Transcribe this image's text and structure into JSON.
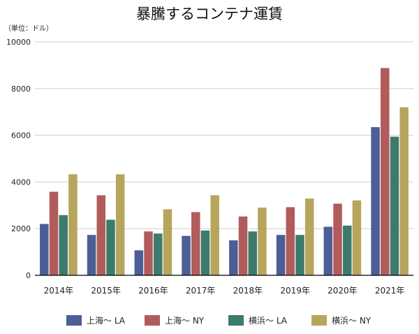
{
  "chart_data": {
    "type": "bar",
    "title": "暴騰するコンテナ運賃",
    "unit_label": "（単位：ドル）",
    "xlabel": "",
    "ylabel": "",
    "ylim": [
      0,
      10000
    ],
    "yticks": [
      0,
      2000,
      4000,
      6000,
      8000,
      10000
    ],
    "grid": true,
    "legend_position": "bottom",
    "categories": [
      "2014年",
      "2015年",
      "2016年",
      "2017年",
      "2018年",
      "2019年",
      "2020年",
      "2021年"
    ],
    "series": [
      {
        "name": "上海～ LA",
        "color": "#4b5f96",
        "values": [
          2200,
          1730,
          1070,
          1690,
          1500,
          1730,
          2080,
          6350
        ]
      },
      {
        "name": "上海～ NY",
        "color": "#b25b5b",
        "values": [
          3580,
          3430,
          1880,
          2710,
          2520,
          2920,
          3070,
          8880
        ]
      },
      {
        "name": "横浜～ LA",
        "color": "#3c7b6c",
        "values": [
          2580,
          2380,
          1790,
          1920,
          1880,
          1730,
          2130,
          5940
        ]
      },
      {
        "name": "横浜～ NY",
        "color": "#b8a55d",
        "values": [
          4330,
          4330,
          2830,
          3430,
          2900,
          3290,
          3210,
          7200
        ]
      }
    ]
  }
}
